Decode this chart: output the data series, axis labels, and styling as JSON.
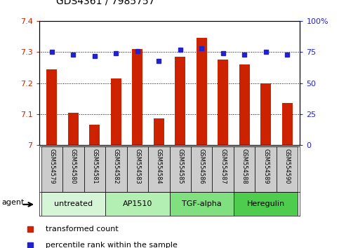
{
  "title": "GDS4361 / 7985757",
  "samples": [
    "GSM554579",
    "GSM554580",
    "GSM554581",
    "GSM554582",
    "GSM554583",
    "GSM554584",
    "GSM554585",
    "GSM554586",
    "GSM554587",
    "GSM554588",
    "GSM554589",
    "GSM554590"
  ],
  "red_values": [
    7.245,
    7.105,
    7.065,
    7.215,
    7.31,
    7.085,
    7.285,
    7.345,
    7.275,
    7.26,
    7.2,
    7.135
  ],
  "blue_values": [
    75,
    73,
    72,
    74,
    76,
    68,
    77,
    78,
    74,
    73,
    75,
    73
  ],
  "ylim_left": [
    7.0,
    7.4
  ],
  "ylim_right": [
    0,
    100
  ],
  "yticks_left": [
    7.0,
    7.1,
    7.2,
    7.3,
    7.4
  ],
  "yticks_right": [
    0,
    25,
    50,
    75,
    100
  ],
  "groups": [
    {
      "label": "untreated",
      "start": 0,
      "end": 3
    },
    {
      "label": "AP1510",
      "start": 3,
      "end": 6
    },
    {
      "label": "TGF-alpha",
      "start": 6,
      "end": 9
    },
    {
      "label": "Heregulin",
      "start": 9,
      "end": 12
    }
  ],
  "group_colors": [
    "#d6f5d6",
    "#b3eeb3",
    "#80e080",
    "#4dcc4d"
  ],
  "bar_color": "#cc2200",
  "dot_color": "#2222cc",
  "bg_color": "#ffffff",
  "sample_box_color": "#cccccc",
  "legend_red_label": "transformed count",
  "legend_blue_label": "percentile rank within the sample",
  "agent_label": "agent"
}
